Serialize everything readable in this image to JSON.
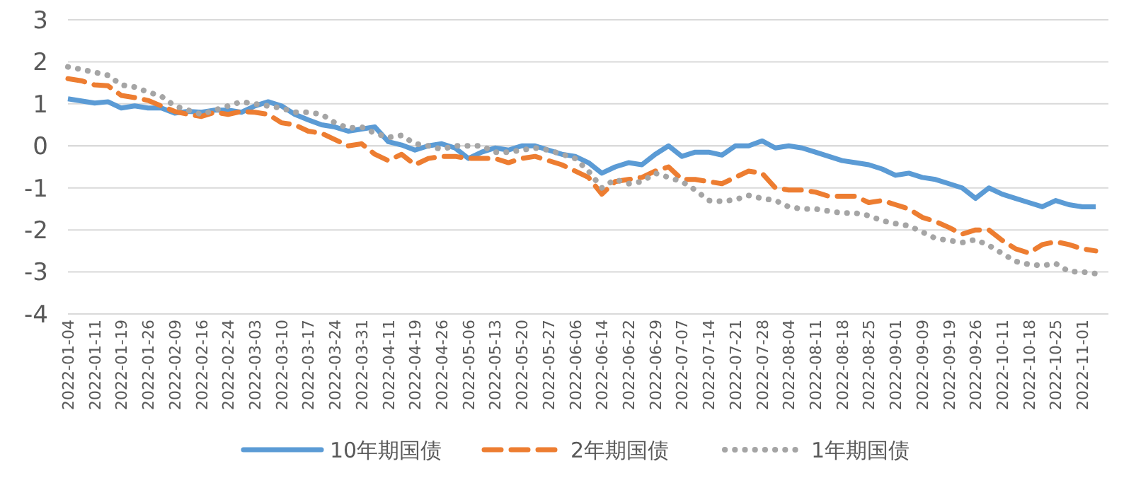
{
  "chart_data": {
    "type": "line",
    "categories": [
      "2022-01-04",
      null,
      "2022-01-11",
      null,
      "2022-01-19",
      null,
      "2022-01-26",
      null,
      "2022-02-09",
      null,
      "2022-02-16",
      null,
      "2022-02-24",
      null,
      "2022-03-03",
      null,
      "2022-03-10",
      null,
      "2022-03-17",
      null,
      "2022-03-24",
      null,
      "2022-03-31",
      null,
      "2022-04-11",
      null,
      "2022-04-19",
      null,
      "2022-04-26",
      null,
      "2022-05-06",
      null,
      "2022-05-13",
      null,
      "2022-05-20",
      null,
      "2022-05-27",
      null,
      "2022-06-06",
      null,
      "2022-06-14",
      null,
      "2022-06-22",
      null,
      "2022-06-29",
      null,
      "2022-07-07",
      null,
      "2022-07-14",
      null,
      "2022-07-21",
      null,
      "2022-07-28",
      null,
      "2022-08-04",
      null,
      "2022-08-11",
      null,
      "2022-08-18",
      null,
      "2022-08-25",
      null,
      "2022-09-01",
      null,
      "2022-09-09",
      null,
      "2022-09-19",
      null,
      "2022-09-26",
      null,
      "2022-10-11",
      null,
      "2022-10-18",
      null,
      "2022-10-25",
      null,
      "2022-11-01",
      null
    ],
    "series": [
      {
        "name": "10年期国债",
        "color": "#5b9bd5",
        "line_style": "solid",
        "values": [
          1.12,
          1.07,
          1.02,
          1.05,
          0.9,
          0.95,
          0.9,
          0.9,
          0.78,
          0.82,
          0.8,
          0.85,
          0.85,
          0.8,
          0.95,
          1.05,
          0.95,
          0.75,
          0.62,
          0.5,
          0.45,
          0.35,
          0.4,
          0.45,
          0.1,
          0.02,
          -0.1,
          0.0,
          0.05,
          -0.05,
          -0.3,
          -0.15,
          -0.05,
          -0.1,
          0.0,
          0.0,
          -0.1,
          -0.2,
          -0.25,
          -0.4,
          -0.65,
          -0.5,
          -0.4,
          -0.45,
          -0.2,
          0.0,
          -0.25,
          -0.15,
          -0.15,
          -0.22,
          0.0,
          0.0,
          0.12,
          -0.05,
          0.0,
          -0.05,
          -0.15,
          -0.25,
          -0.35,
          -0.4,
          -0.45,
          -0.55,
          -0.7,
          -0.65,
          -0.75,
          -0.8,
          -0.9,
          -1.0,
          -1.25,
          -1.0,
          -1.15,
          -1.25,
          -1.35,
          -1.45,
          -1.3,
          -1.4,
          -1.45,
          -1.45
        ]
      },
      {
        "name": "2年期国债",
        "color": "#ed7d31",
        "line_style": "dashed",
        "values": [
          1.6,
          1.55,
          1.45,
          1.43,
          1.2,
          1.15,
          1.08,
          0.95,
          0.82,
          0.75,
          0.7,
          0.8,
          0.75,
          0.82,
          0.8,
          0.75,
          0.55,
          0.5,
          0.35,
          0.3,
          0.15,
          0.0,
          0.05,
          -0.2,
          -0.35,
          -0.2,
          -0.45,
          -0.3,
          -0.25,
          -0.25,
          -0.3,
          -0.3,
          -0.3,
          -0.4,
          -0.3,
          -0.25,
          -0.35,
          -0.45,
          -0.6,
          -0.75,
          -1.15,
          -0.85,
          -0.8,
          -0.75,
          -0.6,
          -0.5,
          -0.8,
          -0.8,
          -0.85,
          -0.9,
          -0.75,
          -0.6,
          -0.65,
          -1.0,
          -1.05,
          -1.05,
          -1.1,
          -1.2,
          -1.2,
          -1.2,
          -1.35,
          -1.3,
          -1.4,
          -1.5,
          -1.7,
          -1.8,
          -1.94,
          -2.1,
          -2.0,
          -2.0,
          -2.25,
          -2.45,
          -2.55,
          -2.35,
          -2.28,
          -2.35,
          -2.45,
          -2.5
        ]
      },
      {
        "name": "1年期国债",
        "color": "#a5a5a5",
        "line_style": "dotted",
        "values": [
          1.88,
          1.82,
          1.75,
          1.68,
          1.45,
          1.4,
          1.28,
          1.18,
          0.95,
          0.85,
          0.75,
          0.85,
          0.95,
          1.05,
          1.0,
          0.95,
          0.9,
          0.8,
          0.8,
          0.75,
          0.55,
          0.42,
          0.45,
          0.3,
          0.2,
          0.25,
          0.05,
          0.0,
          -0.08,
          0.0,
          0.0,
          0.0,
          -0.15,
          -0.15,
          -0.1,
          -0.05,
          -0.1,
          -0.2,
          -0.3,
          -0.6,
          -1.0,
          -0.8,
          -0.9,
          -0.85,
          -0.65,
          -0.75,
          -0.85,
          -1.05,
          -1.3,
          -1.32,
          -1.28,
          -1.18,
          -1.25,
          -1.3,
          -1.45,
          -1.5,
          -1.5,
          -1.55,
          -1.6,
          -1.6,
          -1.66,
          -1.78,
          -1.85,
          -1.9,
          -2.05,
          -2.2,
          -2.25,
          -2.3,
          -2.23,
          -2.37,
          -2.56,
          -2.75,
          -2.82,
          -2.85,
          -2.8,
          -2.99,
          -3.0,
          -3.04
        ]
      }
    ],
    "ylim": [
      -4,
      3
    ],
    "yticks": [
      -4,
      -3,
      -2,
      -1,
      0,
      1,
      2,
      3
    ],
    "grid": "y",
    "legend": "bottom"
  }
}
